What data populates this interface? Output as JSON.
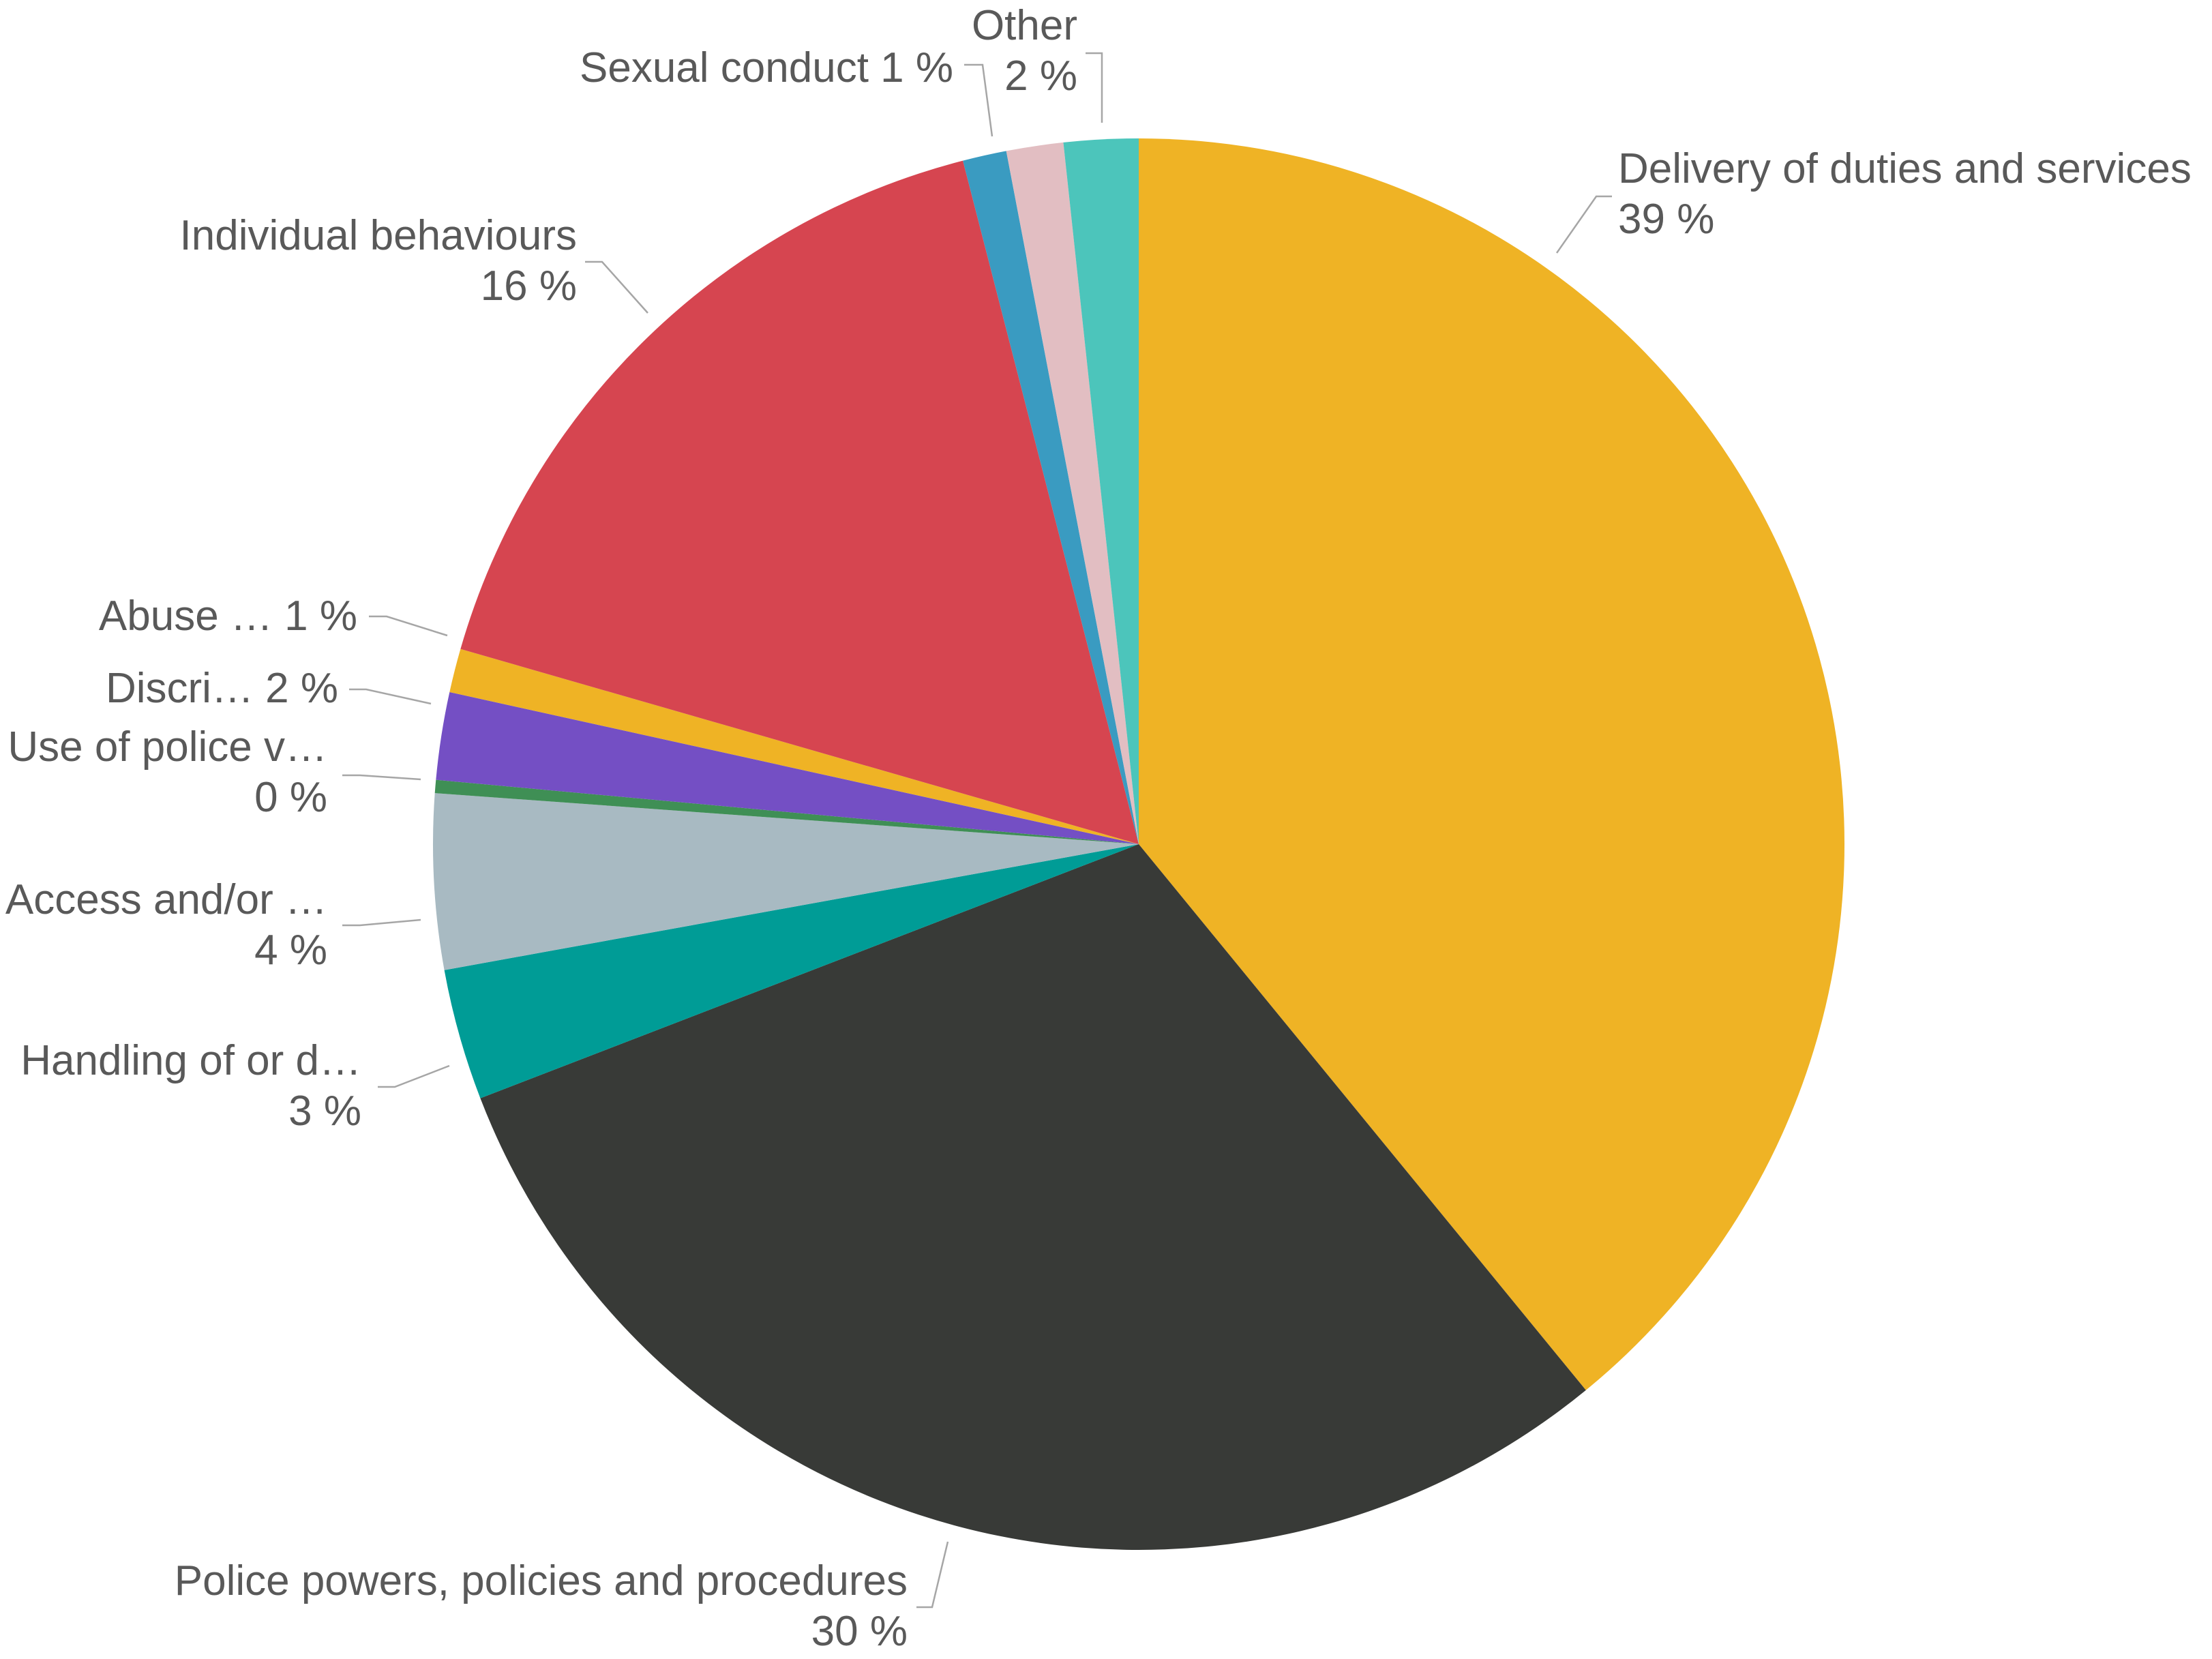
{
  "chart_data": {
    "type": "pie",
    "title": "",
    "start_angle": "12 o'clock",
    "direction": "clockwise",
    "legend": "none (data labels with leader lines)",
    "slices": [
      {
        "key": "delivery",
        "name": "Delivery of duties and services",
        "value": 39.0,
        "label": "39 %",
        "color": "#efb325"
      },
      {
        "key": "powers",
        "name": "Police powers, policies and procedures",
        "value": 30.0,
        "label": "30 %",
        "color": "#383a37"
      },
      {
        "key": "handling",
        "name": "Handling of or d…",
        "value": 3.0,
        "label": "3 %",
        "color": "#009c96"
      },
      {
        "key": "access",
        "name": "Access and/or …",
        "value": 4.0,
        "label": "4 %",
        "color": "#a8bac2"
      },
      {
        "key": "vehicle",
        "name": "Use of police v…",
        "value": 0.3,
        "label": "0 %",
        "color": "#3f8f55"
      },
      {
        "key": "discri",
        "name": "Discri…",
        "value": 2.0,
        "label": "2 %",
        "color": "#744fc4"
      },
      {
        "key": "abuse",
        "name": "Abuse …",
        "value": 1.0,
        "label": "1 %",
        "color": "#efb325"
      },
      {
        "key": "individual",
        "name": "Individual behaviours",
        "value": 16.5,
        "label": "16 %",
        "color": "#d64550"
      },
      {
        "key": "sexual",
        "name": "Sexual conduct",
        "value": 1.0,
        "label": "1 %",
        "color": "#3a9bc1"
      },
      {
        "key": "misc",
        "name": "",
        "value": 1.3,
        "label": "",
        "color": "#e2bec2"
      },
      {
        "key": "other",
        "name": "Other",
        "value": 1.7,
        "label": "2 %",
        "color": "#4cc5bb"
      }
    ]
  },
  "labels": {
    "delivery_name": "Delivery of duties and services",
    "delivery_pct": "39 %",
    "powers_name": "Police powers, policies and procedures",
    "powers_pct": "30 %",
    "handling_name": "Handling of or d…",
    "handling_pct": "3 %",
    "access_name": "Access and/or …",
    "access_pct": "4 %",
    "vehicle_name": "Use of police v…",
    "vehicle_pct": "0 %",
    "discri_text": "Discri… 2 %",
    "abuse_text": "Abuse … 1 %",
    "individual_name": "Individual behaviours",
    "individual_pct": "16 %",
    "sexual_text": "Sexual conduct 1 %",
    "other_name": "Other",
    "other_pct": "2 %"
  }
}
